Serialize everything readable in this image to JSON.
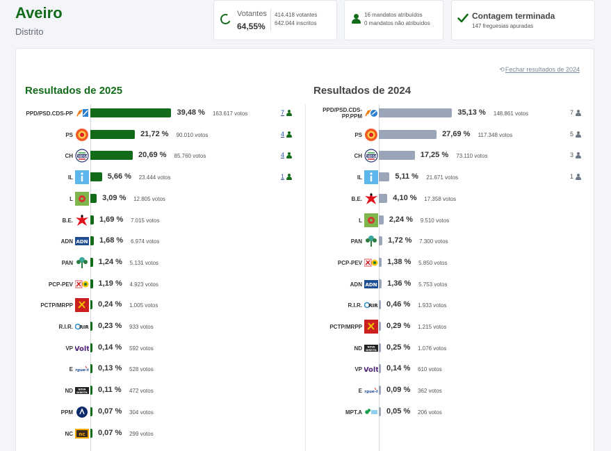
{
  "header": {
    "title": "Aveiro",
    "subtitle": "Distrito"
  },
  "stats": {
    "votantes": {
      "label": "Votantes",
      "pct": "64,55%",
      "line1": "414.418 votantes",
      "line2": "642.044 inscritos"
    },
    "mandatos": {
      "line1": "16 mandatos atribuídos",
      "line2": "0 mandatos não atribuídos"
    },
    "contagem": {
      "title": "Contagem terminada",
      "subtitle": "147 freguesias apuradas"
    }
  },
  "close_link": "Fechar resultados de 2024",
  "results_2025": {
    "title": "Resultados de 2025",
    "rows": [
      {
        "party": "PPD/PSD.CDS-PP",
        "logo": "psd-cds-logo",
        "value": 39.48,
        "pct": "39,48 %",
        "votes": "163.617 votos",
        "seats": "7"
      },
      {
        "party": "PS",
        "logo": "ps-logo",
        "value": 21.72,
        "pct": "21,72 %",
        "votes": "90.010 votos",
        "seats": "4"
      },
      {
        "party": "CH",
        "logo": "ch-logo",
        "value": 20.69,
        "pct": "20,69 %",
        "votes": "85.760 votos",
        "seats": "4"
      },
      {
        "party": "IL",
        "logo": "il-logo",
        "value": 5.66,
        "pct": "5,66 %",
        "votes": "23.444 votos",
        "seats": "1"
      },
      {
        "party": "L",
        "logo": "livre-logo",
        "value": 3.09,
        "pct": "3,09 %",
        "votes": "12.805 votos",
        "seats": ""
      },
      {
        "party": "B.E.",
        "logo": "be-logo",
        "value": 1.69,
        "pct": "1,69 %",
        "votes": "7.015 votos",
        "seats": ""
      },
      {
        "party": "ADN",
        "logo": "adn-logo",
        "value": 1.68,
        "pct": "1,68 %",
        "votes": "6.974 votos",
        "seats": ""
      },
      {
        "party": "PAN",
        "logo": "pan-logo",
        "value": 1.24,
        "pct": "1,24 %",
        "votes": "5.131 votos",
        "seats": ""
      },
      {
        "party": "PCP-PEV",
        "logo": "pcp-pev-logo",
        "value": 1.19,
        "pct": "1,19 %",
        "votes": "4.923 votos",
        "seats": ""
      },
      {
        "party": "PCTP/MRPP",
        "logo": "pctp-logo",
        "value": 0.24,
        "pct": "0,24 %",
        "votes": "1.005 votos",
        "seats": ""
      },
      {
        "party": "R.I.R.",
        "logo": "rir-logo",
        "value": 0.23,
        "pct": "0,23 %",
        "votes": "933 votos",
        "seats": ""
      },
      {
        "party": "VP",
        "logo": "volt-logo",
        "value": 0.14,
        "pct": "0,14 %",
        "votes": "592 votos",
        "seats": ""
      },
      {
        "party": "E",
        "logo": "ergue-te-logo",
        "value": 0.13,
        "pct": "0,13 %",
        "votes": "528 votos",
        "seats": ""
      },
      {
        "party": "ND",
        "logo": "nd-logo",
        "value": 0.11,
        "pct": "0,11 %",
        "votes": "472 votos",
        "seats": ""
      },
      {
        "party": "PPM",
        "logo": "ppm-logo",
        "value": 0.07,
        "pct": "0,07 %",
        "votes": "304 votos",
        "seats": ""
      },
      {
        "party": "NC",
        "logo": "nc-logo",
        "value": 0.07,
        "pct": "0,07 %",
        "votes": "299 votos",
        "seats": ""
      }
    ]
  },
  "results_2024": {
    "title": "Resultados de 2024",
    "rows": [
      {
        "party": "PPD/PSD.CDS-PP.PPM",
        "logo": "ad-logo",
        "value": 35.13,
        "pct": "35,13 %",
        "votes": "148.861 votos",
        "seats": "7"
      },
      {
        "party": "PS",
        "logo": "ps-logo",
        "value": 27.69,
        "pct": "27,69 %",
        "votes": "117.348 votos",
        "seats": "5"
      },
      {
        "party": "CH",
        "logo": "ch-logo",
        "value": 17.25,
        "pct": "17,25 %",
        "votes": "73.110 votos",
        "seats": "3"
      },
      {
        "party": "IL",
        "logo": "il-logo",
        "value": 5.11,
        "pct": "5,11 %",
        "votes": "21.671 votos",
        "seats": "1"
      },
      {
        "party": "B.E.",
        "logo": "be-logo",
        "value": 4.1,
        "pct": "4,10 %",
        "votes": "17.358 votos",
        "seats": ""
      },
      {
        "party": "L",
        "logo": "livre-logo",
        "value": 2.24,
        "pct": "2,24 %",
        "votes": "9.510 votos",
        "seats": ""
      },
      {
        "party": "PAN",
        "logo": "pan-logo",
        "value": 1.72,
        "pct": "1,72 %",
        "votes": "7.300 votos",
        "seats": ""
      },
      {
        "party": "PCP-PEV",
        "logo": "pcp-pev-logo",
        "value": 1.38,
        "pct": "1,38 %",
        "votes": "5.850 votos",
        "seats": ""
      },
      {
        "party": "ADN",
        "logo": "adn-logo",
        "value": 1.36,
        "pct": "1,36 %",
        "votes": "5.753 votos",
        "seats": ""
      },
      {
        "party": "R.I.R.",
        "logo": "rir-logo",
        "value": 0.46,
        "pct": "0,46 %",
        "votes": "1.933 votos",
        "seats": ""
      },
      {
        "party": "PCTP/MRPP",
        "logo": "pctp-logo",
        "value": 0.29,
        "pct": "0,29 %",
        "votes": "1.215 votos",
        "seats": ""
      },
      {
        "party": "ND",
        "logo": "nd-logo",
        "value": 0.25,
        "pct": "0,25 %",
        "votes": "1.076 votos",
        "seats": ""
      },
      {
        "party": "VP",
        "logo": "volt-logo",
        "value": 0.14,
        "pct": "0,14 %",
        "votes": "610 votos",
        "seats": ""
      },
      {
        "party": "E",
        "logo": "ergue-te-logo",
        "value": 0.09,
        "pct": "0,09 %",
        "votes": "362 votos",
        "seats": ""
      },
      {
        "party": "MPT.A",
        "logo": "mpt-logo",
        "value": 0.05,
        "pct": "0,05 %",
        "votes": "206 votos",
        "seats": ""
      }
    ]
  },
  "colors": {
    "accent": "#116b18",
    "bar_2025": "#116b18",
    "bar_2024": "#9aa5b8"
  }
}
